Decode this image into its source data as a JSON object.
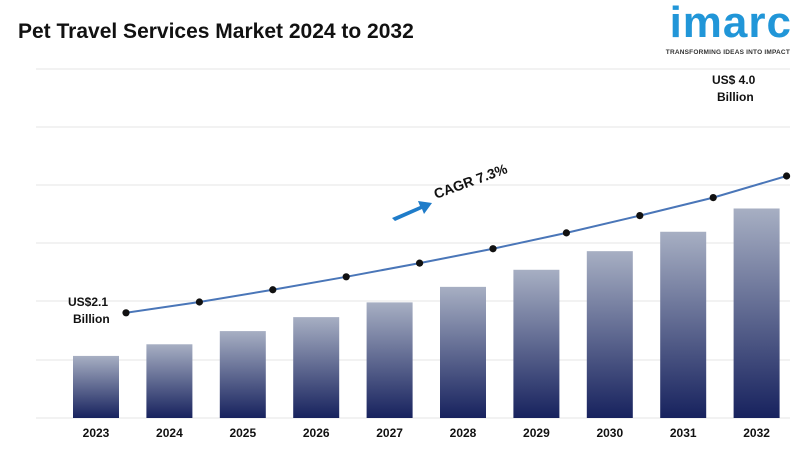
{
  "header": {
    "title": "Pet Travel Services Market 2024 to 2032"
  },
  "logo": {
    "wordmark": "imarc",
    "tagline": "TRANSFORMING IDEAS INTO IMPACT",
    "color": "#2196d8"
  },
  "chart_data": {
    "type": "bar",
    "title": "Pet Travel Services Market 2024 to 2032",
    "categories": [
      "2023",
      "2024",
      "2025",
      "2026",
      "2027",
      "2028",
      "2029",
      "2030",
      "2031",
      "2032"
    ],
    "series": [
      {
        "values": [
          2.1,
          2.25,
          2.42,
          2.6,
          2.79,
          2.99,
          3.21,
          3.45,
          3.7,
          4.0
        ]
      }
    ],
    "trend_line": {
      "values": [
        2.1,
        2.25,
        2.42,
        2.6,
        2.79,
        2.99,
        3.21,
        3.45,
        3.7,
        4.0
      ],
      "color": "#4a76b8"
    },
    "annotations": {
      "start_line1": "US$2.1",
      "start_line2": "Billion",
      "end_line1": "US$ 4.0",
      "end_line2": "Billion",
      "cagr": "CAGR 7.3%"
    },
    "colors": {
      "bar_top": "#a7afc3",
      "bar_bottom": "#17225e",
      "arrow": "#1f7cc9",
      "grid": "#e6e6e6"
    },
    "grid": true
  }
}
